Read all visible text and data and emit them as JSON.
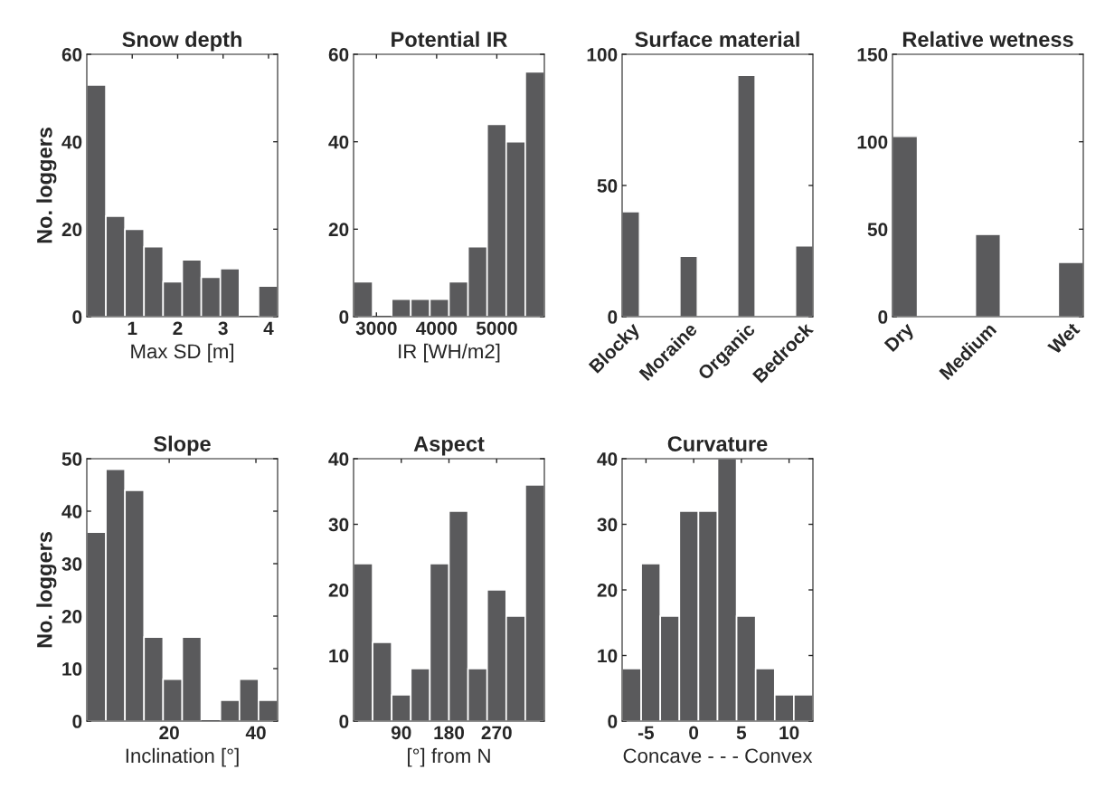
{
  "chart_data": [
    {
      "type": "histogram",
      "title": "Snow depth",
      "xlabel": "Max SD [m]",
      "ylabel": "No. loggers",
      "color": "#5a5a5c",
      "bins": [
        0,
        0.42,
        0.84,
        1.26,
        1.68,
        2.1,
        2.52,
        2.94,
        3.36,
        3.78,
        4.2
      ],
      "values": [
        53,
        23,
        20,
        16,
        8,
        13,
        9,
        11,
        0,
        7
      ],
      "xlim": [
        0,
        4.2
      ],
      "xticks": [
        1,
        2,
        3,
        4
      ],
      "ylim": [
        0,
        60
      ],
      "yticks": [
        0,
        20,
        40,
        60
      ]
    },
    {
      "type": "histogram",
      "title": "Potential IR",
      "xlabel": "IR [WH/m2]",
      "color": "#5a5a5c",
      "bins": [
        2620,
        2937,
        3254,
        3571,
        3888,
        4205,
        4522,
        4839,
        5156,
        5473,
        5790
      ],
      "values": [
        8,
        0,
        4,
        4,
        4,
        8,
        16,
        44,
        40,
        56
      ],
      "xlim": [
        2620,
        5790
      ],
      "xticks": [
        3000,
        4000,
        5000
      ],
      "ylim": [
        0,
        60
      ],
      "yticks": [
        0,
        20,
        40,
        60
      ]
    },
    {
      "type": "bar",
      "title": "Surface material",
      "color": "#5a5a5c",
      "categories": [
        "Blocky",
        "Moraine",
        "Organic",
        "Bedrock"
      ],
      "values": [
        40,
        23,
        92,
        27
      ],
      "ylim": [
        0,
        100
      ],
      "yticks": [
        0,
        50,
        100
      ]
    },
    {
      "type": "bar",
      "title": "Relative wetness",
      "color": "#5a5a5c",
      "categories": [
        "Dry",
        "Medium",
        "Wet"
      ],
      "values": [
        103,
        47,
        31
      ],
      "ylim": [
        0,
        150
      ],
      "yticks": [
        0,
        50,
        100,
        150
      ]
    },
    {
      "type": "histogram",
      "title": "Slope",
      "xlabel": "Inclination [°]",
      "ylabel": "No. loggers",
      "color": "#5a5a5c",
      "bins": [
        1,
        5.4,
        9.8,
        14.2,
        18.6,
        23,
        27.4,
        31.8,
        36.2,
        40.6,
        45
      ],
      "values": [
        36,
        48,
        44,
        16,
        8,
        16,
        0,
        4,
        8,
        4
      ],
      "xlim": [
        1,
        45
      ],
      "xticks": [
        20,
        40
      ],
      "ylim": [
        0,
        50
      ],
      "yticks": [
        0,
        10,
        20,
        30,
        40,
        50
      ]
    },
    {
      "type": "histogram",
      "title": "Aspect",
      "xlabel": "[°] from N",
      "color": "#5a5a5c",
      "bins": [
        0,
        36,
        72,
        108,
        144,
        180,
        216,
        252,
        288,
        324,
        360
      ],
      "values": [
        24,
        12,
        4,
        8,
        24,
        32,
        8,
        20,
        16,
        36
      ],
      "xlim": [
        0,
        360
      ],
      "xticks": [
        90,
        180,
        270
      ],
      "ylim": [
        0,
        40
      ],
      "yticks": [
        0,
        10,
        20,
        30,
        40
      ]
    },
    {
      "type": "histogram",
      "title": "Curvature",
      "xlabel": "Concave - - - Convex",
      "color": "#5a5a5c",
      "bins": [
        -7.5,
        -5.5,
        -3.5,
        -1.5,
        0.5,
        2.5,
        4.5,
        6.5,
        8.5,
        10.5,
        12.5
      ],
      "values": [
        8,
        24,
        16,
        32,
        32,
        40,
        16,
        8,
        4,
        4
      ],
      "xlim": [
        -7.5,
        12.5
      ],
      "xticks": [
        -5,
        0,
        5,
        10
      ],
      "ylim": [
        0,
        40
      ],
      "yticks": [
        0,
        10,
        20,
        30,
        40
      ]
    }
  ]
}
